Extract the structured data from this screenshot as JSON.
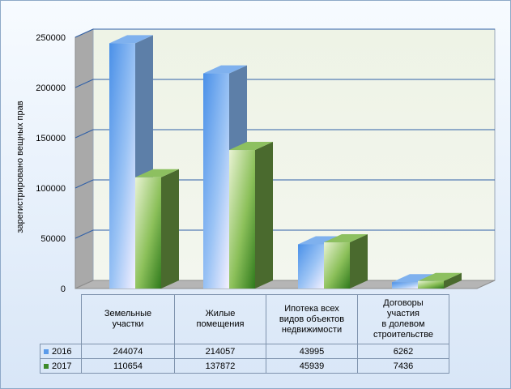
{
  "chart_data": {
    "type": "bar",
    "title": "",
    "ylabel": "зарегистрировано вещных прав",
    "xlabel": "",
    "ylim": [
      0,
      250000
    ],
    "yticks": [
      "0",
      "50000",
      "100000",
      "150000",
      "200000",
      "250000"
    ],
    "categories": [
      "Земельные участки",
      "Жилые помещения",
      "Ипотека всех видов объектов недвижимости",
      "Договоры участия в долевом строительстве"
    ],
    "series": [
      {
        "name": "2016",
        "values": [
          244074,
          214057,
          43995,
          6262
        ],
        "color": "#5b9bea"
      },
      {
        "name": "2017",
        "values": [
          110654,
          137872,
          45939,
          7436
        ],
        "color": "#3d8a2a"
      }
    ],
    "grid": true,
    "legend": "table-left"
  },
  "table": {
    "category_lines": [
      [
        "Земельные",
        "участки"
      ],
      [
        "Жилые",
        "помещения"
      ],
      [
        "Ипотека всех",
        "видов объектов",
        "недвижимости"
      ],
      [
        "Договоры",
        "участия",
        "в долевом",
        "строительстве"
      ]
    ],
    "rows": [
      {
        "label": "2016",
        "cells": [
          "244074",
          "214057",
          "43995",
          "6262"
        ]
      },
      {
        "label": "2017",
        "cells": [
          "110654",
          "137872",
          "45939",
          "7436"
        ]
      }
    ]
  }
}
